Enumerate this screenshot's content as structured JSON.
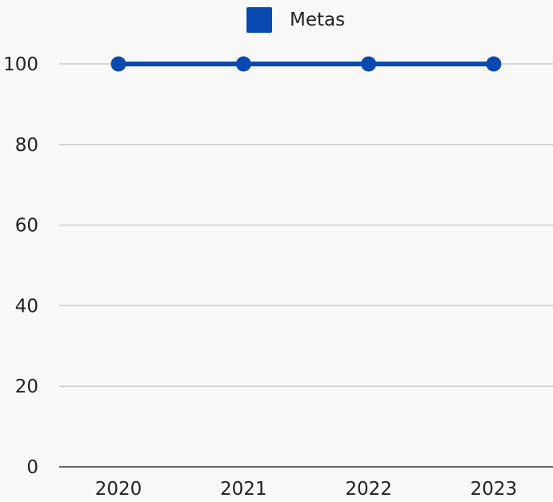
{
  "chart_data": {
    "type": "line",
    "categories": [
      "2020",
      "2021",
      "2022",
      "2023"
    ],
    "series": [
      {
        "name": "Metas",
        "values": [
          100,
          100,
          100,
          100
        ],
        "color": "#0a4ab0"
      }
    ],
    "ylim": [
      0,
      100
    ],
    "yticks": [
      0,
      20,
      40,
      60,
      80,
      100
    ],
    "grid": true,
    "legend_position": "top-center",
    "title": "",
    "xlabel": "",
    "ylabel": ""
  }
}
